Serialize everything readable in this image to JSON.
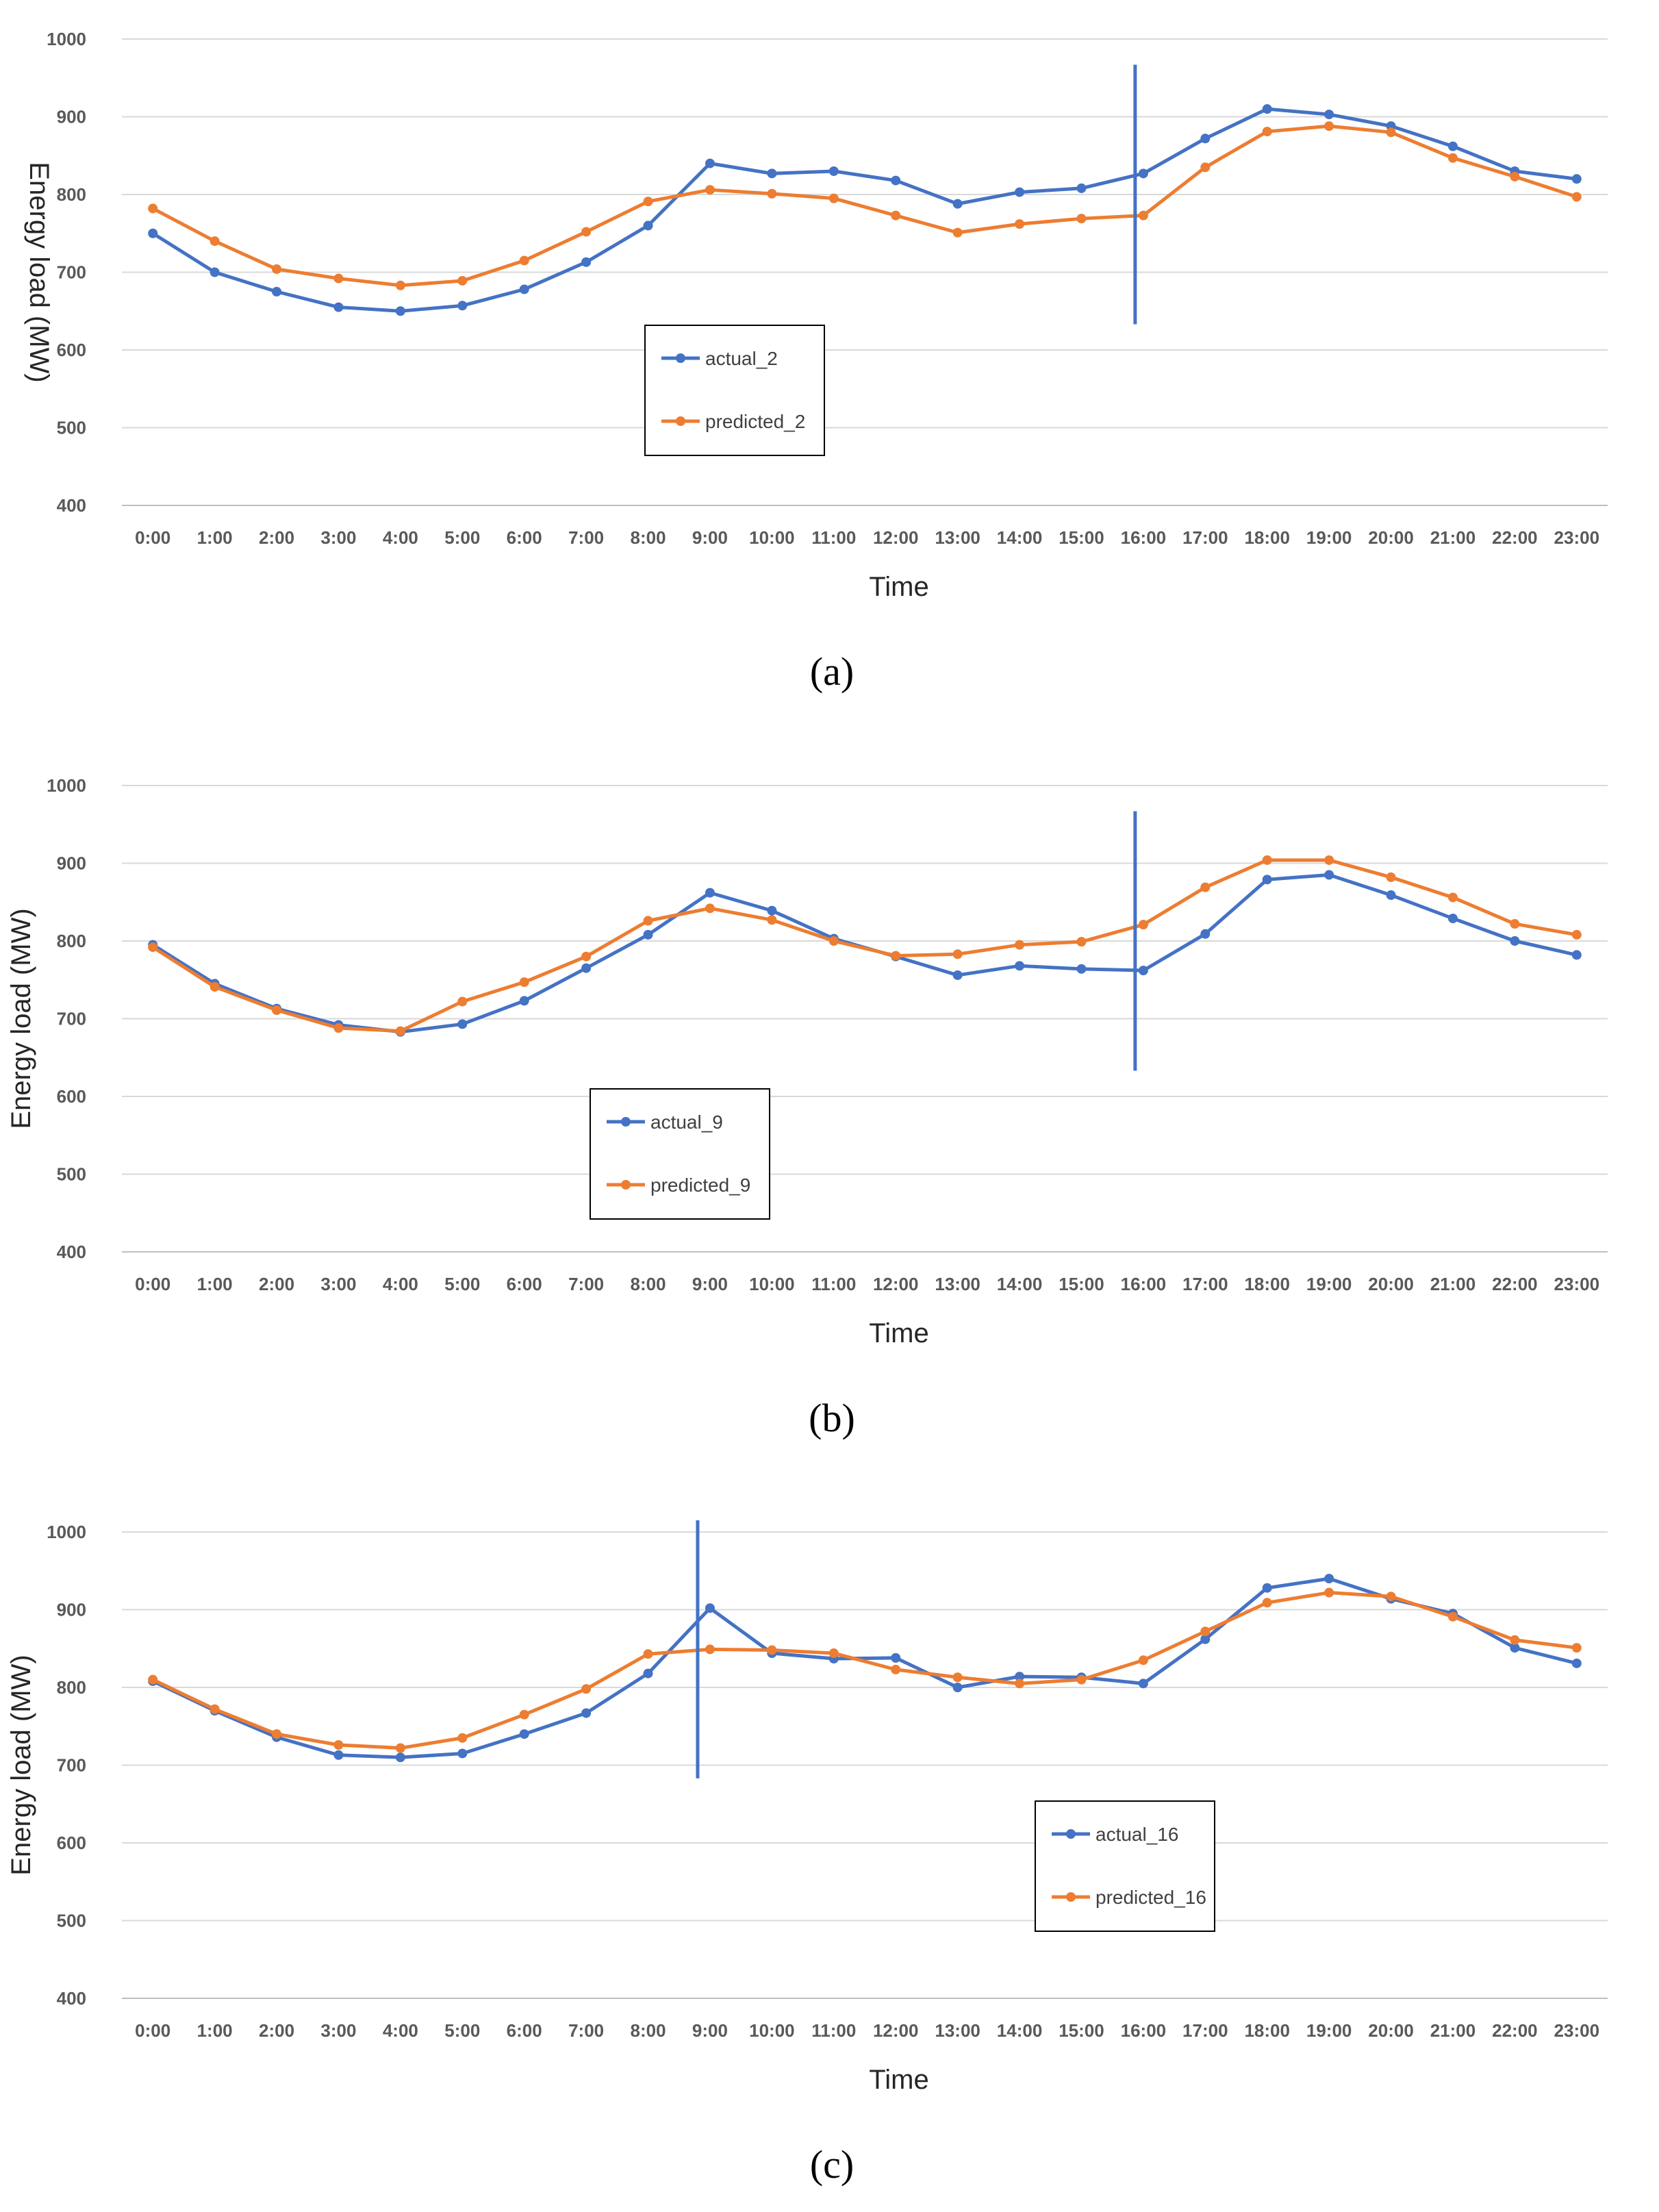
{
  "chart_data": [
    {
      "panel_label": "(a)",
      "type": "line",
      "xlabel": "Time",
      "ylabel": "Energy load  (MW)",
      "ylim": [
        400,
        1000
      ],
      "yticks": [
        "400",
        "500",
        "600",
        "700",
        "800",
        "900",
        "1000"
      ],
      "categories": [
        "0:00",
        "1:00",
        "2:00",
        "3:00",
        "4:00",
        "5:00",
        "6:00",
        "7:00",
        "8:00",
        "9:00",
        "10:00",
        "11:00",
        "12:00",
        "13:00",
        "14:00",
        "15:00",
        "16:00",
        "17:00",
        "18:00",
        "19:00",
        "20:00",
        "21:00",
        "22:00",
        "23:00"
      ],
      "series": [
        {
          "name": "actual_2",
          "color": "#4472c4",
          "values": [
            750,
            700,
            675,
            655,
            650,
            657,
            678,
            713,
            760,
            840,
            827,
            830,
            818,
            788,
            803,
            808,
            827,
            872,
            910,
            903,
            888,
            862,
            830,
            820
          ]
        },
        {
          "name": "predicted_2",
          "color": "#ed7d31",
          "values": [
            782,
            740,
            704,
            692,
            683,
            689,
            715,
            752,
            791,
            806,
            801,
            795,
            773,
            751,
            762,
            769,
            773,
            835,
            881,
            888,
            880,
            847,
            823,
            797
          ]
        }
      ],
      "marker_line": {
        "x": "16:00",
        "from": 633,
        "to": 967
      },
      "legend_position": "center-left"
    },
    {
      "panel_label": "(b)",
      "type": "line",
      "xlabel": "Time",
      "ylabel": "Energy load  (MW)",
      "ylim": [
        400,
        1000
      ],
      "yticks": [
        "400",
        "500",
        "600",
        "700",
        "800",
        "900",
        "1000"
      ],
      "categories": [
        "0:00",
        "1:00",
        "2:00",
        "3:00",
        "4:00",
        "5:00",
        "6:00",
        "7:00",
        "8:00",
        "9:00",
        "10:00",
        "11:00",
        "12:00",
        "13:00",
        "14:00",
        "15:00",
        "16:00",
        "17:00",
        "18:00",
        "19:00",
        "20:00",
        "21:00",
        "22:00",
        "23:00"
      ],
      "series": [
        {
          "name": "actual_9",
          "color": "#4472c4",
          "values": [
            795,
            745,
            713,
            692,
            683,
            693,
            723,
            765,
            808,
            862,
            839,
            803,
            780,
            756,
            768,
            764,
            762,
            809,
            879,
            885,
            859,
            829,
            800,
            782
          ]
        },
        {
          "name": "predicted_9",
          "color": "#ed7d31",
          "values": [
            792,
            741,
            711,
            688,
            684,
            722,
            747,
            780,
            826,
            842,
            827,
            800,
            781,
            783,
            795,
            799,
            821,
            869,
            904,
            904,
            882,
            856,
            822,
            808
          ]
        }
      ],
      "marker_line": {
        "x": "16:00",
        "from": 633,
        "to": 967
      },
      "legend_position": "lower-left"
    },
    {
      "panel_label": "(c)",
      "type": "line",
      "xlabel": "Time",
      "ylabel": "Energy load  (MW)",
      "ylim": [
        400,
        1000
      ],
      "yticks": [
        "400",
        "500",
        "600",
        "700",
        "800",
        "900",
        "1000"
      ],
      "categories": [
        "0:00",
        "1:00",
        "2:00",
        "3:00",
        "4:00",
        "5:00",
        "6:00",
        "7:00",
        "8:00",
        "9:00",
        "10:00",
        "11:00",
        "12:00",
        "13:00",
        "14:00",
        "15:00",
        "16:00",
        "17:00",
        "18:00",
        "19:00",
        "20:00",
        "21:00",
        "22:00",
        "23:00"
      ],
      "series": [
        {
          "name": "actual_16",
          "color": "#4472c4",
          "values": [
            808,
            770,
            736,
            713,
            710,
            715,
            740,
            767,
            818,
            902,
            844,
            837,
            838,
            800,
            814,
            813,
            805,
            862,
            928,
            940,
            914,
            895,
            851,
            831
          ]
        },
        {
          "name": "predicted_16",
          "color": "#ed7d31",
          "values": [
            810,
            772,
            740,
            726,
            722,
            735,
            765,
            798,
            843,
            849,
            848,
            844,
            823,
            813,
            805,
            810,
            835,
            872,
            909,
            922,
            917,
            891,
            861,
            851
          ]
        }
      ],
      "marker_line": {
        "x": "9:00",
        "from": 683,
        "to": 1015
      },
      "legend_position": "lower-right"
    }
  ]
}
